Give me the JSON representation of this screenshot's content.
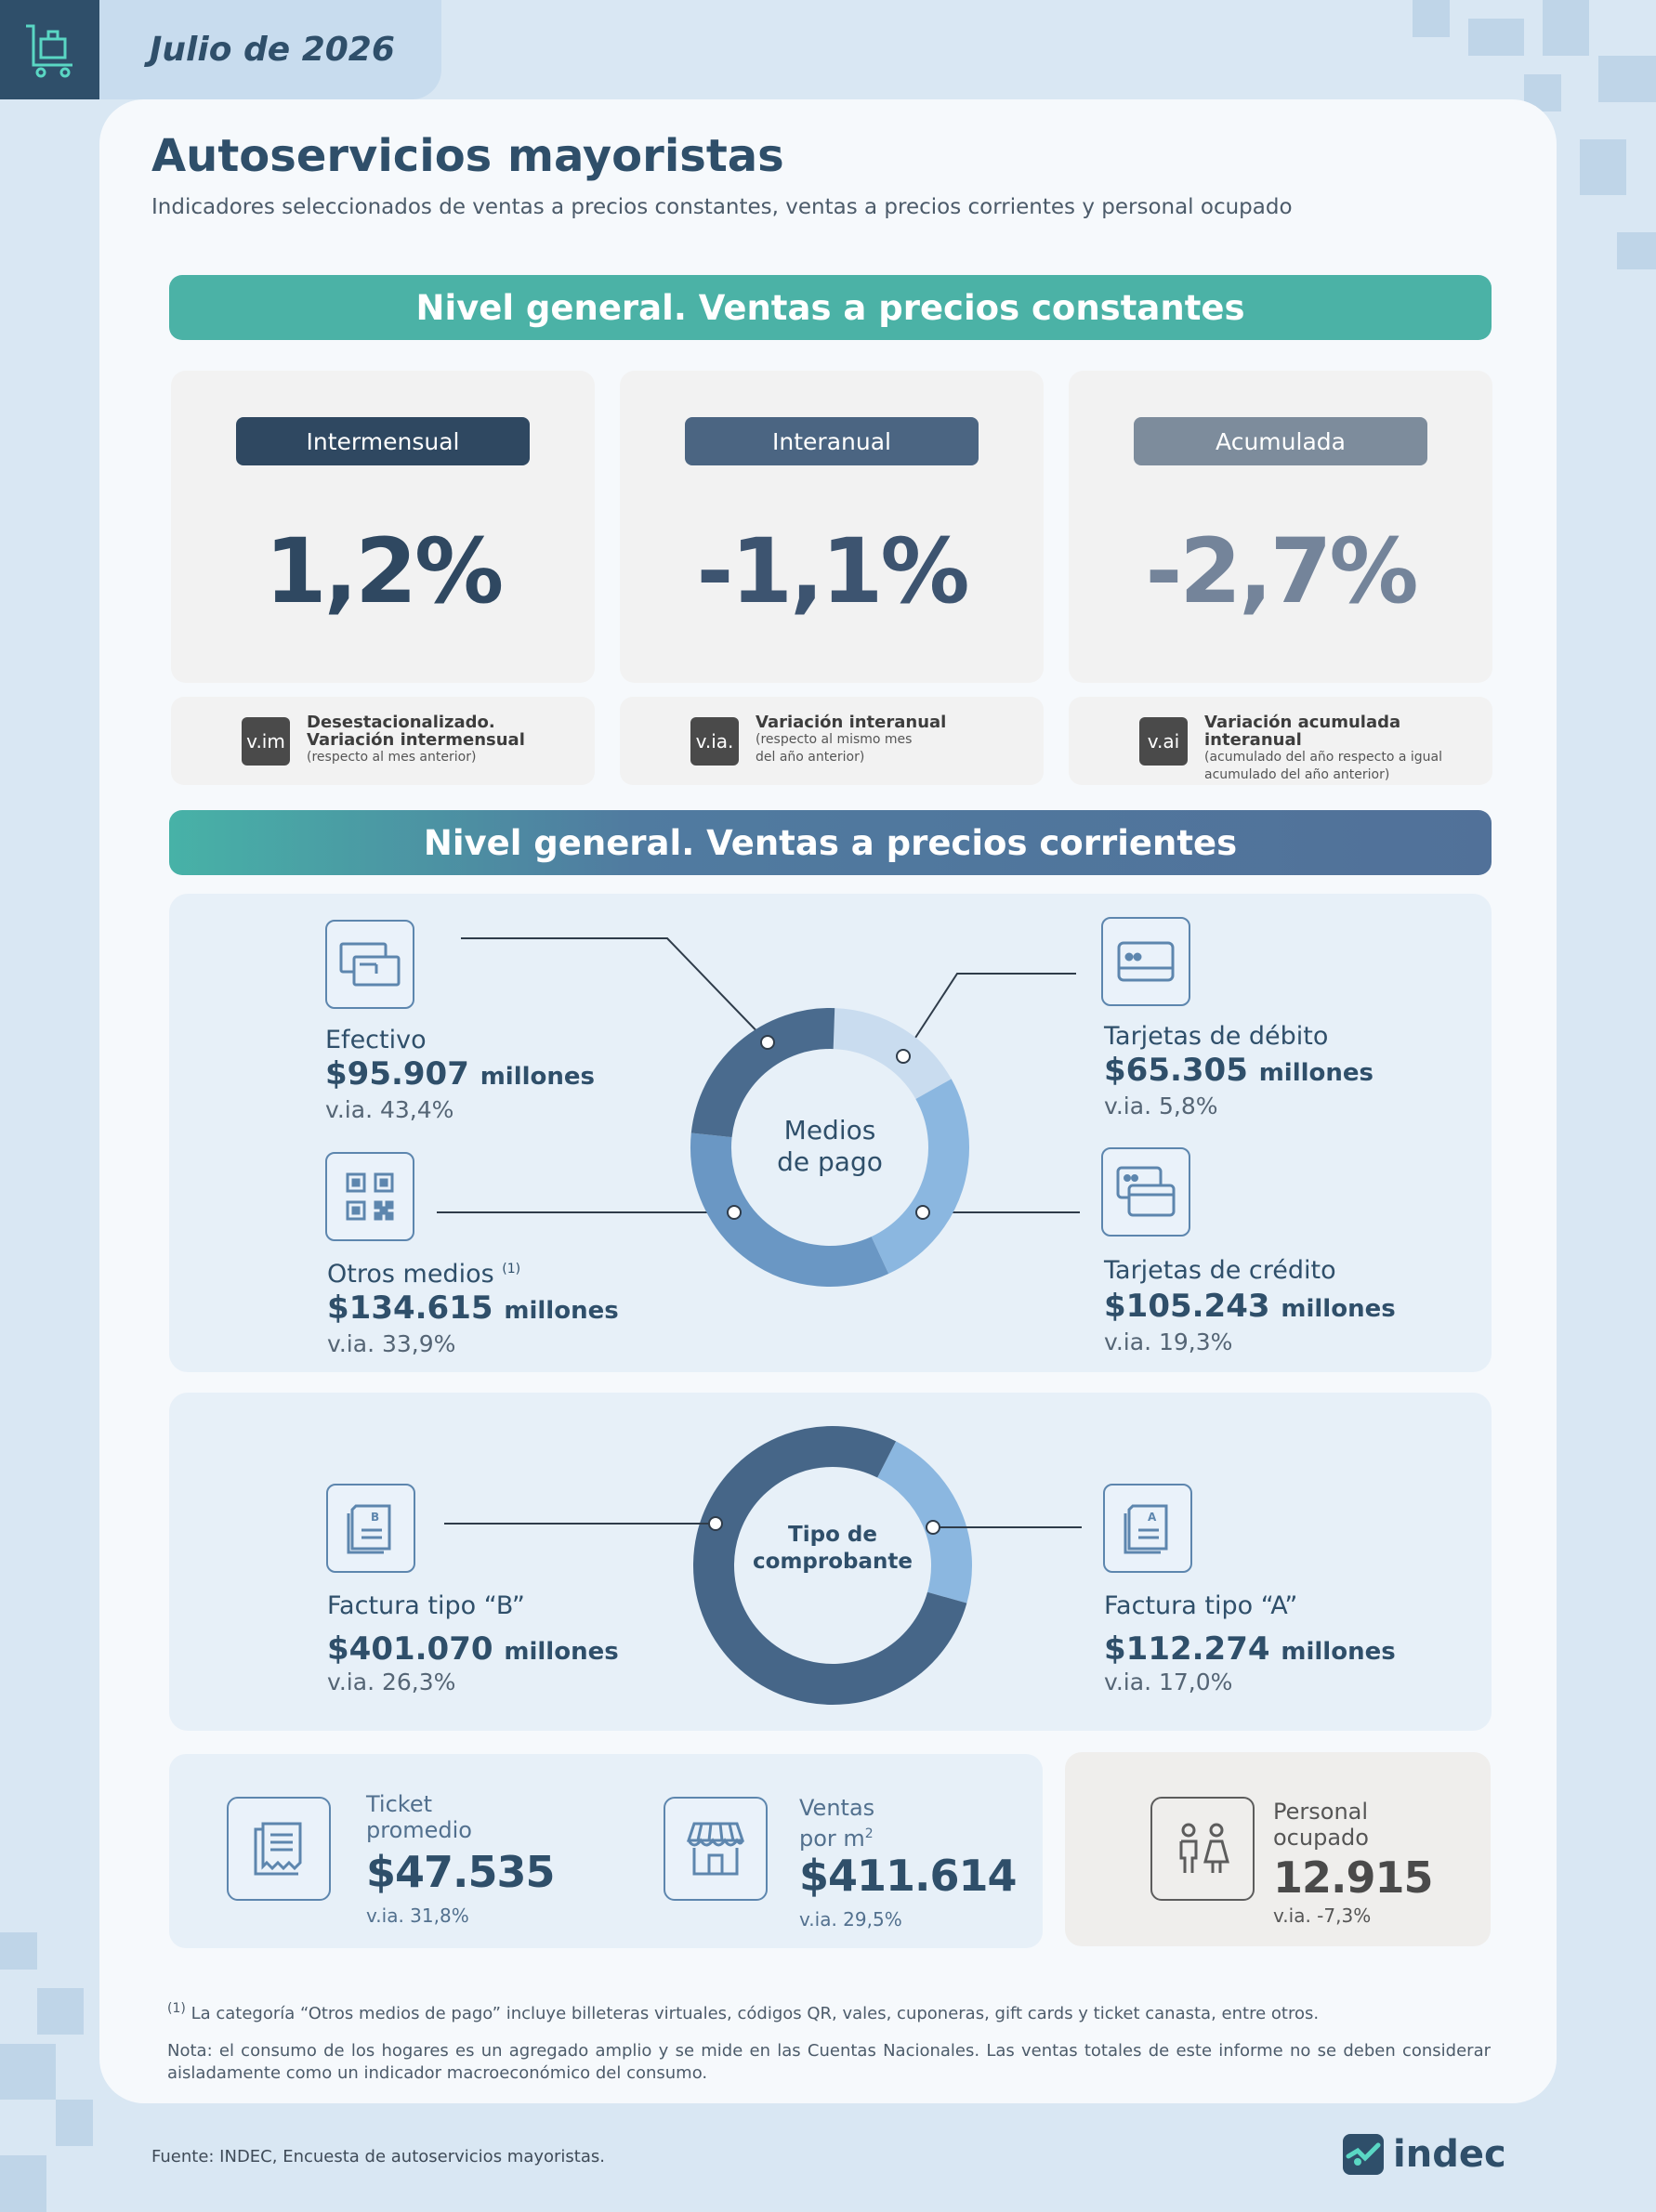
{
  "header": {
    "date": "Julio de 2026",
    "icon": "shopping-cart-icon"
  },
  "title": "Autoservicios mayoristas",
  "subtitle": "Indicadores seleccionados de ventas a precios constantes, ventas a precios corrientes y personal ocupado",
  "section_constant": {
    "banner": "Nivel general. Ventas a precios constantes",
    "metrics": [
      {
        "label": "Intermensual",
        "value": "1,2%",
        "pill_color": "#2f4861",
        "value_color": "#2f4861"
      },
      {
        "label": "Interanual",
        "value": "-1,1%",
        "pill_color": "#4b6582",
        "value_color": "#3d5470"
      },
      {
        "label": "Acumulada",
        "value": "-2,7%",
        "pill_color": "#7d8c9c",
        "value_color": "#74849a"
      }
    ],
    "legend": [
      {
        "tag": "v.im",
        "title": "Desestacionalizado. Variación intermensual",
        "note": "(respecto al mes anterior)"
      },
      {
        "tag": "v.ia.",
        "title": "Variación interanual",
        "note": "(respecto al mismo mes del año anterior)"
      },
      {
        "tag": "v.ai",
        "title": "Variación acumulada interanual",
        "note": "(acumulado del año respecto a igual acumulado del año anterior)"
      }
    ]
  },
  "section_current": {
    "banner": "Nivel general. Ventas a precios corrientes",
    "payment": {
      "center_label_1": "Medios",
      "center_label_2": "de pago",
      "efectivo": {
        "label": "Efectivo",
        "value": "$95.907",
        "unit": "millones",
        "via": "v.ia. 43,4%",
        "icon": "cash-icon"
      },
      "debito": {
        "label": "Tarjetas de débito",
        "value": "$65.305",
        "unit": "millones",
        "via": "v.ia. 5,8%",
        "icon": "debit-card-icon"
      },
      "otros": {
        "label": "Otros medios",
        "sup": "(1)",
        "value": "$134.615",
        "unit": "millones",
        "via": "v.ia. 33,9%",
        "icon": "qr-code-icon"
      },
      "credito": {
        "label": "Tarjetas de crédito",
        "value": "$105.243",
        "unit": "millones",
        "via": "v.ia. 19,3%",
        "icon": "credit-cards-icon"
      }
    },
    "receipt": {
      "center_label_1": "Tipo de",
      "center_label_2": "comprobante",
      "b": {
        "label": "Factura tipo “B”",
        "value": "$401.070",
        "unit": "millones",
        "via": "v.ia. 26,3%",
        "icon": "invoice-b-icon"
      },
      "a": {
        "label": "Factura tipo “A”",
        "value": "$112.274",
        "unit": "millones",
        "via": "v.ia. 17,0%",
        "icon": "invoice-a-icon"
      }
    }
  },
  "chart_data": [
    {
      "type": "pie",
      "title": "Medios de pago",
      "categories": [
        "Tarjetas de débito",
        "Tarjetas de crédito",
        "Otros medios",
        "Efectivo"
      ],
      "values": [
        65305,
        105243,
        134615,
        95907
      ],
      "colors": [
        "#c9dcef",
        "#8bb7e0",
        "#6a97c4",
        "#4a6b8e"
      ]
    },
    {
      "type": "pie",
      "title": "Tipo de comprobante",
      "categories": [
        "Factura tipo “A”",
        "Factura tipo “B”"
      ],
      "values": [
        112274,
        401070
      ],
      "colors": [
        "#8bb7e0",
        "#466688"
      ]
    }
  ],
  "indicators": {
    "ticket": {
      "label_1": "Ticket",
      "label_2": "promedio",
      "value": "$47.535",
      "via": "v.ia. 31,8%",
      "icon": "receipt-icon"
    },
    "ventas_m2": {
      "label_1": "Ventas",
      "label_2": "por m",
      "label_sup": "2",
      "value": "$411.614",
      "via": "v.ia. 29,5%",
      "icon": "store-icon"
    },
    "personal": {
      "label_1": "Personal",
      "label_2": "ocupado",
      "value": "12.915",
      "via": "v.ia. -7,3%",
      "icon": "people-icon"
    }
  },
  "footnote_1_sup": "(1)",
  "footnote_1": "La categoría “Otros medios de pago” incluye billeteras virtuales, códigos QR, vales, cuponeras, gift cards y ticket canasta, entre otros.",
  "note": "Nota: el consumo de los hogares es un agregado amplio y se mide en las Cuentas Nacionales. Las ventas totales de este informe no se deben considerar aisladamente como un indicador macroeconómico del consumo.",
  "source": "Fuente: INDEC, Encuesta de autoservicios mayoristas.",
  "logo": "indec"
}
